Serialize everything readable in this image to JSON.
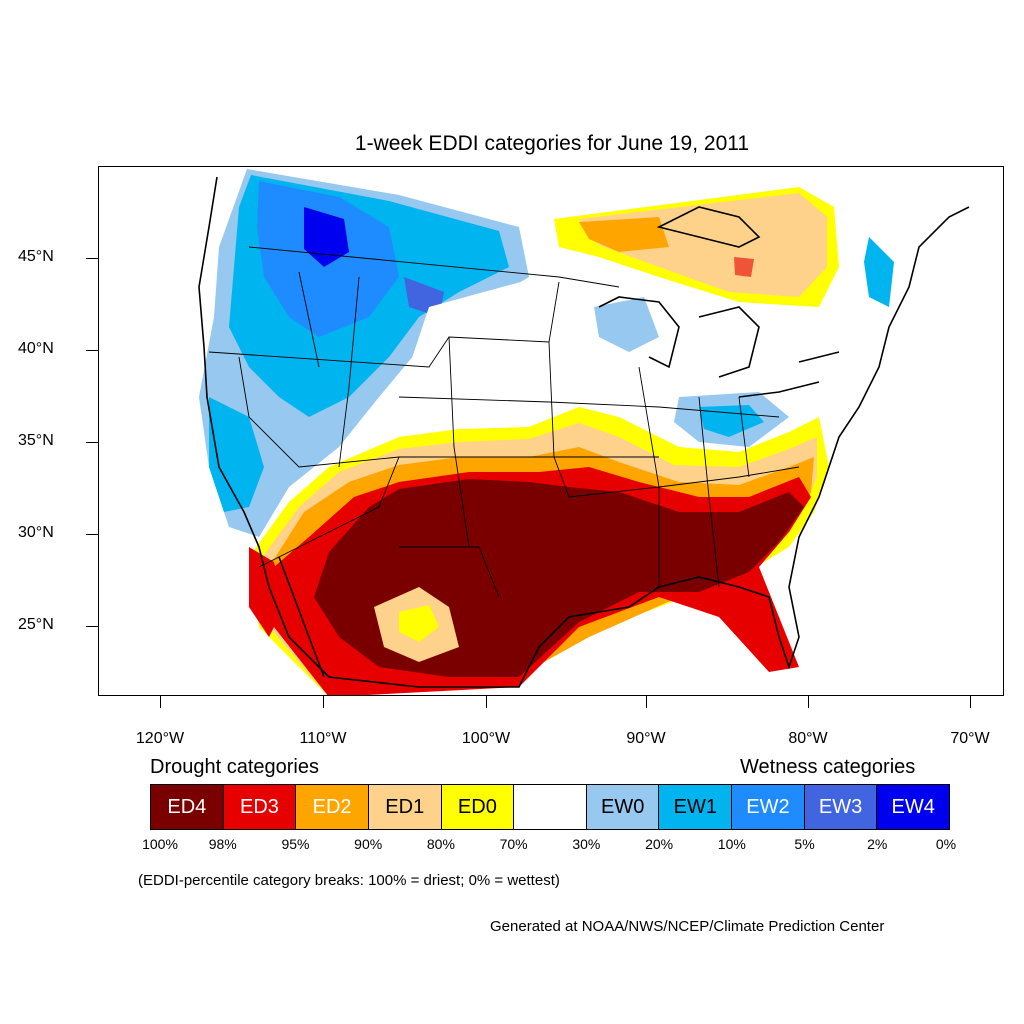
{
  "title": "1-week EDDI categories for June 19, 2011",
  "lat_ticks": [
    "45°N",
    "40°N",
    "35°N",
    "30°N",
    "25°N"
  ],
  "lon_ticks": [
    "120°W",
    "110°W",
    "100°W",
    "90°W",
    "80°W",
    "70°W"
  ],
  "legend": {
    "drought_heading": "Drought categories",
    "wetness_heading": "Wetness categories",
    "categories": [
      {
        "label": "ED4",
        "color": "#7a0000",
        "text_color": "#ffffff"
      },
      {
        "label": "ED3",
        "color": "#e60000",
        "text_color": "#ffffff"
      },
      {
        "label": "ED2",
        "color": "#ffa500",
        "text_color": "#ffffff"
      },
      {
        "label": "ED1",
        "color": "#ffd28c",
        "text_color": "#000000"
      },
      {
        "label": "ED0",
        "color": "#ffff00",
        "text_color": "#000000"
      },
      {
        "label": "",
        "color": "#ffffff",
        "text_color": "#000000"
      },
      {
        "label": "EW0",
        "color": "#96c8f0",
        "text_color": "#000000"
      },
      {
        "label": "EW1",
        "color": "#00b4f0",
        "text_color": "#000000"
      },
      {
        "label": "EW2",
        "color": "#1e8cff",
        "text_color": "#ffffff"
      },
      {
        "label": "EW3",
        "color": "#4164e1",
        "text_color": "#ffffff"
      },
      {
        "label": "EW4",
        "color": "#0000f0",
        "text_color": "#ffffff"
      }
    ],
    "breaks": [
      "100%",
      "98%",
      "95%",
      "90%",
      "80%",
      "70%",
      "30%",
      "20%",
      "10%",
      "5%",
      "2%",
      "0%"
    ]
  },
  "note": "(EDDI-percentile category breaks: 100% = driest; 0% = wettest)",
  "credit": "Generated at NOAA/NWS/NCEP/Climate Prediction Center"
}
